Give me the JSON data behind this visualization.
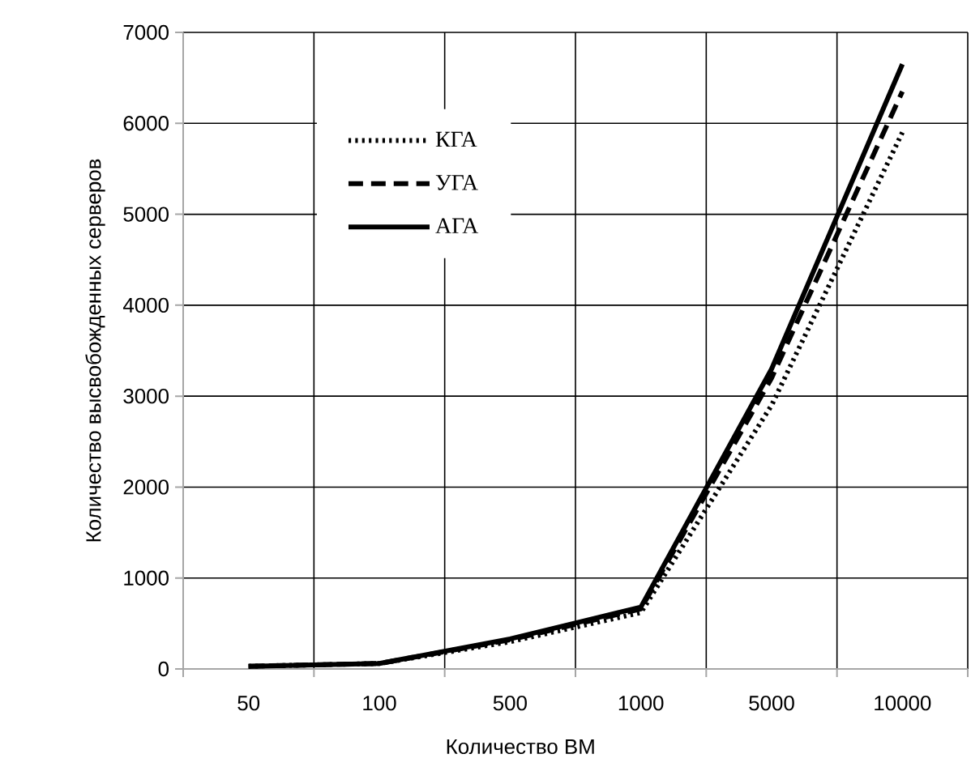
{
  "chart_data": {
    "type": "line",
    "xlabel": "Количество ВМ",
    "ylabel": "Количество высвобожденных серверов",
    "categories": [
      "50",
      "100",
      "500",
      "1000",
      "5000",
      "10000"
    ],
    "series": [
      {
        "name": "КГА",
        "color": "#000000",
        "line_style": "dotted",
        "values": [
          30,
          60,
          300,
          620,
          2900,
          5900
        ]
      },
      {
        "name": "УГА",
        "color": "#000000",
        "line_style": "dashed",
        "values": [
          30,
          60,
          320,
          660,
          3200,
          6350
        ]
      },
      {
        "name": "АГА",
        "color": "#000000",
        "line_style": "solid",
        "values": [
          30,
          60,
          330,
          680,
          3300,
          6650
        ]
      }
    ],
    "ylim": [
      0,
      7000
    ],
    "yticks": [
      0,
      1000,
      2000,
      3000,
      4000,
      5000,
      6000,
      7000
    ],
    "grid": true,
    "legend": "top left",
    "marker": "none"
  }
}
